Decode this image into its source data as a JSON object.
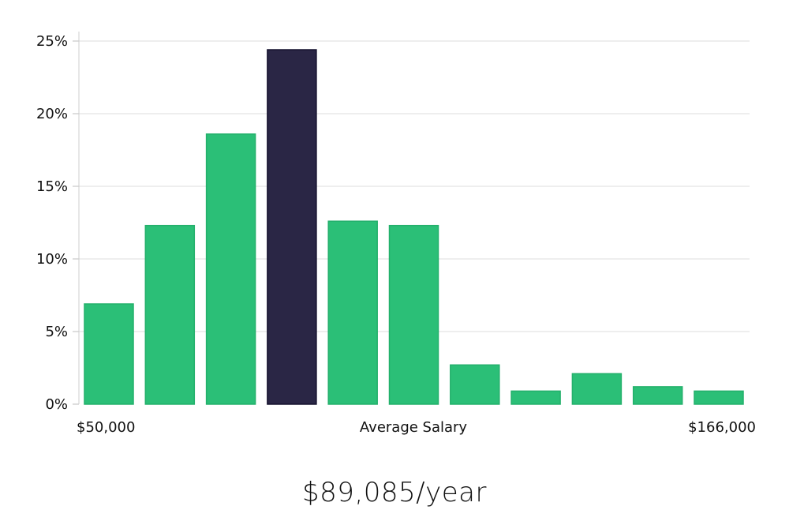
{
  "chart_data": {
    "type": "bar",
    "title": "",
    "xlabel": "Average Salary",
    "ylabel": "",
    "x_min_label": "$50,000",
    "x_max_label": "$166,000",
    "ylim": [
      0,
      25
    ],
    "yticks": [
      0,
      5,
      10,
      15,
      20,
      25
    ],
    "ytick_labels": [
      "0%",
      "5%",
      "10%",
      "15%",
      "20%",
      "25%"
    ],
    "values": [
      6.9,
      12.3,
      18.6,
      24.4,
      12.6,
      12.3,
      2.7,
      0.9,
      2.1,
      1.2,
      0.9
    ],
    "highlight_index": 3,
    "bar_color": "#2bbf77",
    "bar_edge_color": "#23b06b",
    "highlight_color": "#2a2645",
    "highlight_edge_color": "#15122e"
  },
  "summary": {
    "average_salary": "$89,085/year"
  }
}
